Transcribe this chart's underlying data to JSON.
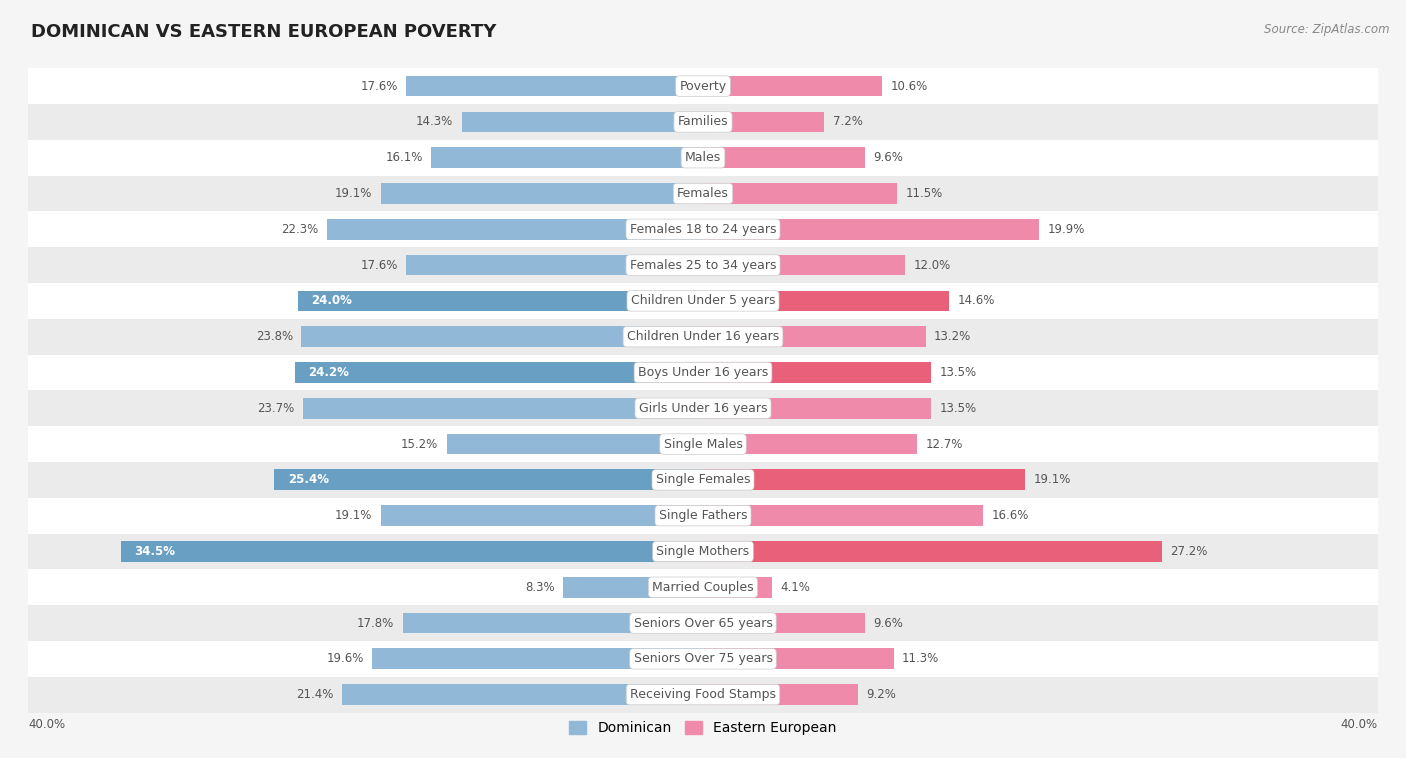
{
  "title": "DOMINICAN VS EASTERN EUROPEAN POVERTY",
  "source": "Source: ZipAtlas.com",
  "categories": [
    "Poverty",
    "Families",
    "Males",
    "Females",
    "Females 18 to 24 years",
    "Females 25 to 34 years",
    "Children Under 5 years",
    "Children Under 16 years",
    "Boys Under 16 years",
    "Girls Under 16 years",
    "Single Males",
    "Single Females",
    "Single Fathers",
    "Single Mothers",
    "Married Couples",
    "Seniors Over 65 years",
    "Seniors Over 75 years",
    "Receiving Food Stamps"
  ],
  "dominican": [
    17.6,
    14.3,
    16.1,
    19.1,
    22.3,
    17.6,
    24.0,
    23.8,
    24.2,
    23.7,
    15.2,
    25.4,
    19.1,
    34.5,
    8.3,
    17.8,
    19.6,
    21.4
  ],
  "eastern_european": [
    10.6,
    7.2,
    9.6,
    11.5,
    19.9,
    12.0,
    14.6,
    13.2,
    13.5,
    13.5,
    12.7,
    19.1,
    16.6,
    27.2,
    4.1,
    9.6,
    11.3,
    9.2
  ],
  "dominican_color": "#92b8d8",
  "eastern_european_color": "#f08aaa",
  "dominican_highlight_color": "#6a9fc4",
  "eastern_european_highlight_color": "#e8607a",
  "highlight_indices": [
    6,
    8,
    11,
    13
  ],
  "axis_limit": 40.0,
  "bar_height": 0.58,
  "bg_color": "#f5f5f5",
  "row_alt_color": "#ebebeb",
  "row_white_color": "#ffffff",
  "label_color": "#555555",
  "title_fontsize": 13,
  "cat_label_fontsize": 9,
  "value_fontsize": 8.5
}
